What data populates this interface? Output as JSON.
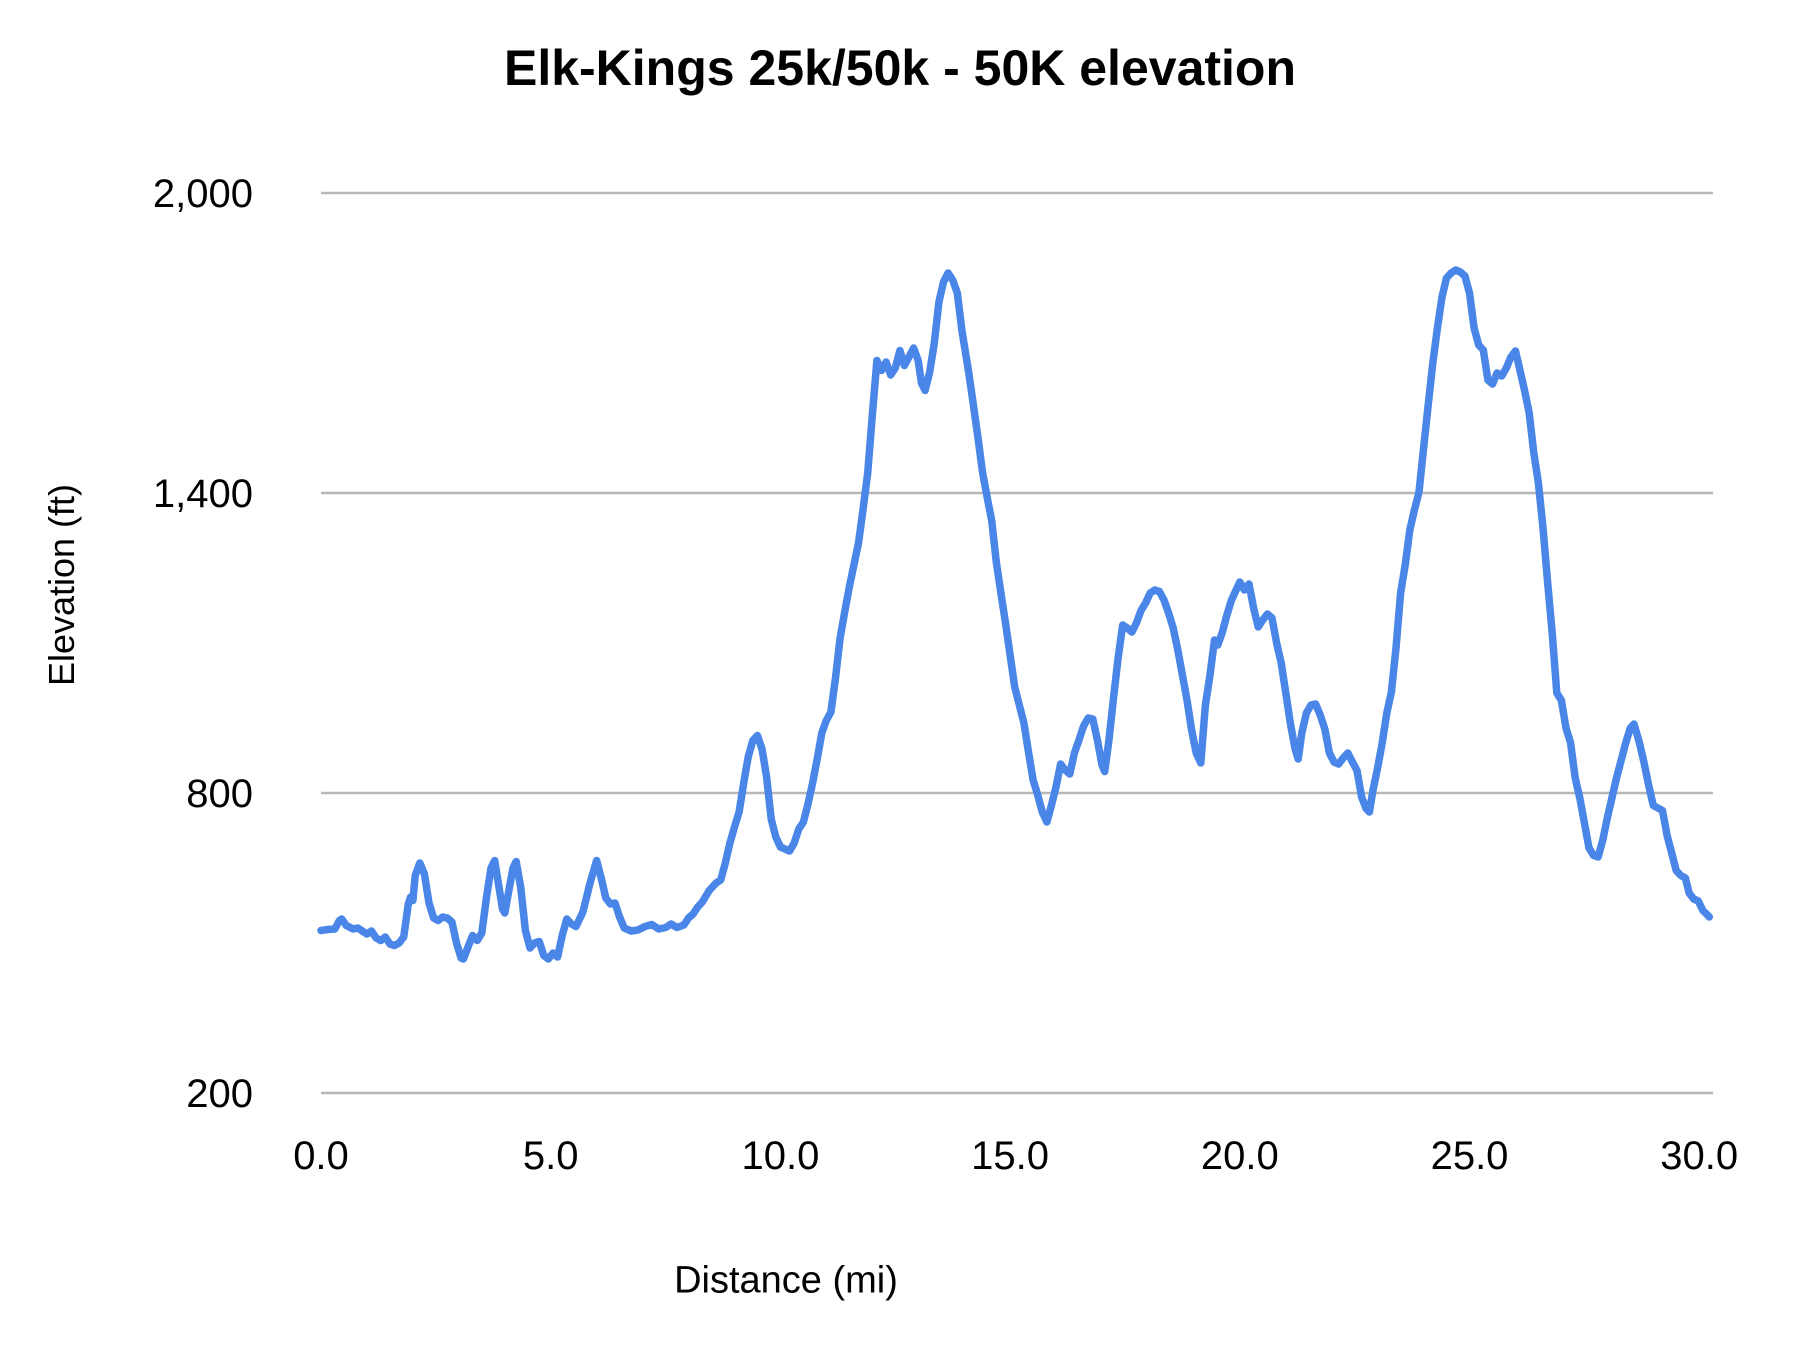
{
  "page": {
    "background": "#ffffff"
  },
  "chart_data": {
    "type": "line",
    "title": "Elk-Kings 25k/50k - 50K elevation",
    "xlabel": "Distance (mi)",
    "ylabel": "Elevation (ft)",
    "series_name": "50K elevation",
    "legend": "none",
    "grid": "horizontal",
    "line_color": "#4a86e8",
    "grid_color": "#b7b7b7",
    "xlim": [
      0,
      30.3
    ],
    "ylim": [
      200,
      2000
    ],
    "x_ticks": [
      0,
      5,
      10,
      15,
      20,
      25,
      30
    ],
    "x_tick_labels": [
      "0.0",
      "5.0",
      "10.0",
      "15.0",
      "20.0",
      "25.0",
      "30.0"
    ],
    "y_ticks": [
      200,
      800,
      1400,
      2000
    ],
    "y_tick_labels": [
      "200",
      "800",
      "1,400",
      "2,000"
    ],
    "points": [
      [
        0.0,
        525
      ],
      [
        0.15,
        527
      ],
      [
        0.3,
        528
      ],
      [
        0.4,
        545
      ],
      [
        0.45,
        548
      ],
      [
        0.55,
        535
      ],
      [
        0.7,
        528
      ],
      [
        0.8,
        530
      ],
      [
        0.9,
        524
      ],
      [
        1.0,
        518
      ],
      [
        1.1,
        524
      ],
      [
        1.2,
        510
      ],
      [
        1.3,
        505
      ],
      [
        1.4,
        512
      ],
      [
        1.5,
        498
      ],
      [
        1.6,
        495
      ],
      [
        1.7,
        500
      ],
      [
        1.8,
        512
      ],
      [
        1.9,
        578
      ],
      [
        1.95,
        592
      ],
      [
        2.0,
        585
      ],
      [
        2.05,
        635
      ],
      [
        2.15,
        660
      ],
      [
        2.25,
        638
      ],
      [
        2.35,
        580
      ],
      [
        2.45,
        550
      ],
      [
        2.55,
        545
      ],
      [
        2.65,
        552
      ],
      [
        2.75,
        550
      ],
      [
        2.85,
        542
      ],
      [
        2.95,
        500
      ],
      [
        3.05,
        470
      ],
      [
        3.1,
        468
      ],
      [
        3.2,
        492
      ],
      [
        3.3,
        515
      ],
      [
        3.4,
        505
      ],
      [
        3.5,
        520
      ],
      [
        3.6,
        590
      ],
      [
        3.7,
        650
      ],
      [
        3.78,
        665
      ],
      [
        3.85,
        625
      ],
      [
        3.95,
        568
      ],
      [
        4.0,
        560
      ],
      [
        4.08,
        600
      ],
      [
        4.18,
        650
      ],
      [
        4.25,
        663
      ],
      [
        4.35,
        610
      ],
      [
        4.45,
        525
      ],
      [
        4.55,
        490
      ],
      [
        4.65,
        500
      ],
      [
        4.75,
        503
      ],
      [
        4.85,
        475
      ],
      [
        4.95,
        468
      ],
      [
        5.05,
        480
      ],
      [
        5.15,
        472
      ],
      [
        5.25,
        515
      ],
      [
        5.35,
        548
      ],
      [
        5.45,
        538
      ],
      [
        5.55,
        533
      ],
      [
        5.7,
        562
      ],
      [
        5.85,
        618
      ],
      [
        6.0,
        665
      ],
      [
        6.1,
        630
      ],
      [
        6.2,
        590
      ],
      [
        6.3,
        578
      ],
      [
        6.4,
        580
      ],
      [
        6.5,
        552
      ],
      [
        6.6,
        530
      ],
      [
        6.75,
        524
      ],
      [
        6.9,
        526
      ],
      [
        7.05,
        533
      ],
      [
        7.2,
        537
      ],
      [
        7.35,
        528
      ],
      [
        7.5,
        531
      ],
      [
        7.62,
        538
      ],
      [
        7.75,
        531
      ],
      [
        7.9,
        536
      ],
      [
        8.0,
        550
      ],
      [
        8.1,
        558
      ],
      [
        8.2,
        572
      ],
      [
        8.3,
        582
      ],
      [
        8.45,
        605
      ],
      [
        8.6,
        620
      ],
      [
        8.7,
        626
      ],
      [
        8.8,
        660
      ],
      [
        8.9,
        700
      ],
      [
        9.0,
        732
      ],
      [
        9.1,
        762
      ],
      [
        9.2,
        820
      ],
      [
        9.3,
        872
      ],
      [
        9.4,
        905
      ],
      [
        9.5,
        915
      ],
      [
        9.6,
        888
      ],
      [
        9.7,
        832
      ],
      [
        9.8,
        748
      ],
      [
        9.9,
        712
      ],
      [
        10.0,
        692
      ],
      [
        10.1,
        688
      ],
      [
        10.2,
        684
      ],
      [
        10.3,
        700
      ],
      [
        10.4,
        728
      ],
      [
        10.5,
        742
      ],
      [
        10.6,
        778
      ],
      [
        10.7,
        820
      ],
      [
        10.8,
        868
      ],
      [
        10.9,
        920
      ],
      [
        11.0,
        945
      ],
      [
        11.1,
        962
      ],
      [
        11.2,
        1030
      ],
      [
        11.3,
        1110
      ],
      [
        11.4,
        1162
      ],
      [
        11.5,
        1212
      ],
      [
        11.6,
        1256
      ],
      [
        11.7,
        1300
      ],
      [
        11.8,
        1368
      ],
      [
        11.9,
        1440
      ],
      [
        12.0,
        1555
      ],
      [
        12.1,
        1665
      ],
      [
        12.2,
        1645
      ],
      [
        12.3,
        1662
      ],
      [
        12.4,
        1636
      ],
      [
        12.5,
        1650
      ],
      [
        12.6,
        1685
      ],
      [
        12.7,
        1655
      ],
      [
        12.8,
        1672
      ],
      [
        12.9,
        1690
      ],
      [
        13.0,
        1665
      ],
      [
        13.07,
        1620
      ],
      [
        13.15,
        1605
      ],
      [
        13.25,
        1642
      ],
      [
        13.35,
        1700
      ],
      [
        13.45,
        1782
      ],
      [
        13.55,
        1822
      ],
      [
        13.65,
        1840
      ],
      [
        13.75,
        1826
      ],
      [
        13.85,
        1800
      ],
      [
        13.95,
        1725
      ],
      [
        14.1,
        1640
      ],
      [
        14.2,
        1576
      ],
      [
        14.3,
        1510
      ],
      [
        14.4,
        1442
      ],
      [
        14.5,
        1392
      ],
      [
        14.6,
        1345
      ],
      [
        14.7,
        1262
      ],
      [
        14.8,
        1200
      ],
      [
        14.9,
        1140
      ],
      [
        15.0,
        1076
      ],
      [
        15.1,
        1012
      ],
      [
        15.2,
        976
      ],
      [
        15.3,
        940
      ],
      [
        15.4,
        882
      ],
      [
        15.5,
        826
      ],
      [
        15.6,
        796
      ],
      [
        15.7,
        762
      ],
      [
        15.8,
        742
      ],
      [
        15.9,
        776
      ],
      [
        16.0,
        812
      ],
      [
        16.1,
        858
      ],
      [
        16.2,
        846
      ],
      [
        16.3,
        838
      ],
      [
        16.4,
        880
      ],
      [
        16.5,
        906
      ],
      [
        16.6,
        934
      ],
      [
        16.7,
        950
      ],
      [
        16.8,
        948
      ],
      [
        16.9,
        906
      ],
      [
        17.0,
        856
      ],
      [
        17.06,
        843
      ],
      [
        17.15,
        905
      ],
      [
        17.25,
        990
      ],
      [
        17.35,
        1070
      ],
      [
        17.45,
        1136
      ],
      [
        17.55,
        1130
      ],
      [
        17.65,
        1122
      ],
      [
        17.75,
        1140
      ],
      [
        17.85,
        1165
      ],
      [
        17.95,
        1180
      ],
      [
        18.05,
        1200
      ],
      [
        18.15,
        1206
      ],
      [
        18.25,
        1203
      ],
      [
        18.35,
        1186
      ],
      [
        18.45,
        1160
      ],
      [
        18.55,
        1130
      ],
      [
        18.65,
        1086
      ],
      [
        18.75,
        1036
      ],
      [
        18.85,
        986
      ],
      [
        18.95,
        926
      ],
      [
        19.05,
        880
      ],
      [
        19.15,
        860
      ],
      [
        19.25,
        976
      ],
      [
        19.35,
        1036
      ],
      [
        19.45,
        1106
      ],
      [
        19.52,
        1096
      ],
      [
        19.62,
        1122
      ],
      [
        19.72,
        1156
      ],
      [
        19.82,
        1186
      ],
      [
        19.92,
        1206
      ],
      [
        20.0,
        1222
      ],
      [
        20.1,
        1206
      ],
      [
        20.2,
        1218
      ],
      [
        20.3,
        1170
      ],
      [
        20.4,
        1132
      ],
      [
        20.5,
        1146
      ],
      [
        20.6,
        1158
      ],
      [
        20.7,
        1150
      ],
      [
        20.8,
        1100
      ],
      [
        20.9,
        1060
      ],
      [
        21.0,
        1000
      ],
      [
        21.1,
        940
      ],
      [
        21.2,
        890
      ],
      [
        21.27,
        868
      ],
      [
        21.35,
        920
      ],
      [
        21.45,
        960
      ],
      [
        21.55,
        976
      ],
      [
        21.65,
        978
      ],
      [
        21.75,
        956
      ],
      [
        21.85,
        928
      ],
      [
        21.95,
        880
      ],
      [
        22.05,
        862
      ],
      [
        22.15,
        858
      ],
      [
        22.25,
        870
      ],
      [
        22.35,
        880
      ],
      [
        22.45,
        862
      ],
      [
        22.55,
        845
      ],
      [
        22.65,
        792
      ],
      [
        22.75,
        769
      ],
      [
        22.82,
        762
      ],
      [
        22.9,
        806
      ],
      [
        23.0,
        850
      ],
      [
        23.1,
        900
      ],
      [
        23.2,
        960
      ],
      [
        23.3,
        1002
      ],
      [
        23.4,
        1090
      ],
      [
        23.5,
        1200
      ],
      [
        23.6,
        1256
      ],
      [
        23.7,
        1326
      ],
      [
        23.8,
        1366
      ],
      [
        23.9,
        1402
      ],
      [
        24.0,
        1490
      ],
      [
        24.1,
        1576
      ],
      [
        24.2,
        1660
      ],
      [
        24.3,
        1730
      ],
      [
        24.4,
        1792
      ],
      [
        24.5,
        1830
      ],
      [
        24.6,
        1840
      ],
      [
        24.7,
        1846
      ],
      [
        24.8,
        1842
      ],
      [
        24.9,
        1834
      ],
      [
        25.0,
        1800
      ],
      [
        25.1,
        1730
      ],
      [
        25.2,
        1696
      ],
      [
        25.3,
        1686
      ],
      [
        25.4,
        1626
      ],
      [
        25.5,
        1618
      ],
      [
        25.6,
        1640
      ],
      [
        25.7,
        1634
      ],
      [
        25.8,
        1650
      ],
      [
        25.9,
        1672
      ],
      [
        26.0,
        1684
      ],
      [
        26.1,
        1645
      ],
      [
        26.2,
        1605
      ],
      [
        26.3,
        1560
      ],
      [
        26.4,
        1480
      ],
      [
        26.5,
        1420
      ],
      [
        26.6,
        1330
      ],
      [
        26.7,
        1222
      ],
      [
        26.8,
        1120
      ],
      [
        26.9,
        1000
      ],
      [
        27.0,
        985
      ],
      [
        27.1,
        930
      ],
      [
        27.2,
        900
      ],
      [
        27.3,
        830
      ],
      [
        27.4,
        790
      ],
      [
        27.5,
        740
      ],
      [
        27.6,
        690
      ],
      [
        27.7,
        675
      ],
      [
        27.8,
        672
      ],
      [
        27.9,
        705
      ],
      [
        28.0,
        750
      ],
      [
        28.1,
        790
      ],
      [
        28.2,
        830
      ],
      [
        28.3,
        865
      ],
      [
        28.4,
        900
      ],
      [
        28.5,
        930
      ],
      [
        28.58,
        938
      ],
      [
        28.7,
        900
      ],
      [
        28.8,
        860
      ],
      [
        28.9,
        815
      ],
      [
        29.0,
        775
      ],
      [
        29.1,
        770
      ],
      [
        29.2,
        765
      ],
      [
        29.3,
        715
      ],
      [
        29.4,
        680
      ],
      [
        29.5,
        645
      ],
      [
        29.6,
        635
      ],
      [
        29.7,
        630
      ],
      [
        29.78,
        600
      ],
      [
        29.88,
        588
      ],
      [
        29.98,
        584
      ],
      [
        30.08,
        565
      ],
      [
        30.18,
        556
      ],
      [
        30.22,
        552
      ]
    ]
  }
}
